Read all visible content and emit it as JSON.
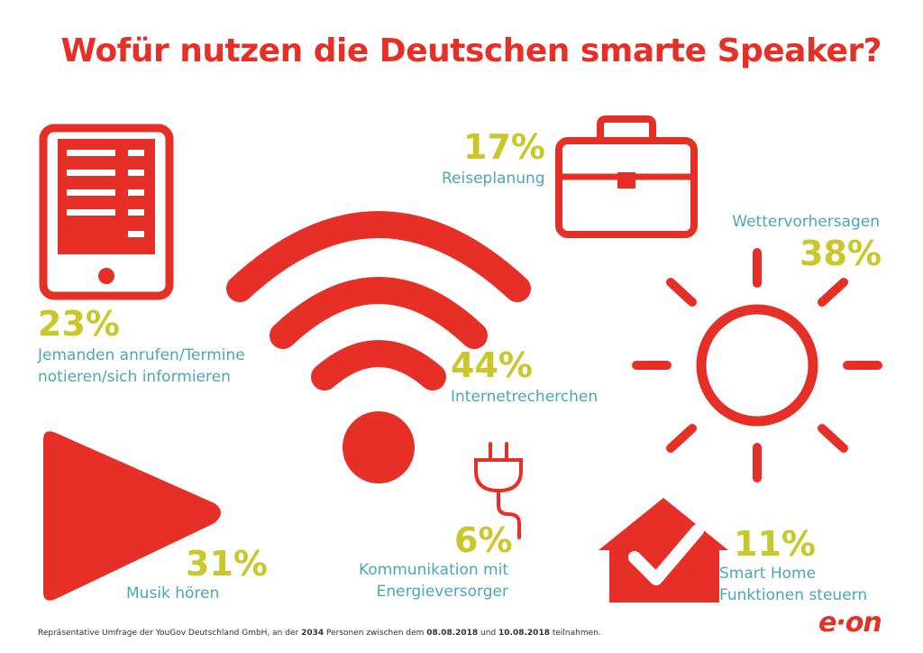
{
  "title": "Wofür nutzen die Deutschen smarte Speaker?",
  "colors": {
    "accent": "#e63027",
    "percent": "#c9c72c",
    "label": "#4aa8b5"
  },
  "chart_data": {
    "type": "infographic",
    "unit": "%",
    "items": [
      {
        "key": "tablet",
        "icon": "tablet-icon",
        "value": 23,
        "value_label": "23%",
        "label_lines": [
          "Jemanden anrufen/Termine",
          "notieren/sich informieren"
        ]
      },
      {
        "key": "suitcase",
        "icon": "suitcase-icon",
        "value": 17,
        "value_label": "17%",
        "label_lines": [
          "Reiseplanung"
        ]
      },
      {
        "key": "wifi",
        "icon": "wifi-icon",
        "value": 44,
        "value_label": "44%",
        "label_lines": [
          "Internetrecherchen"
        ]
      },
      {
        "key": "sun",
        "icon": "sun-icon",
        "value": 38,
        "value_label": "38%",
        "label_lines": [
          "Wettervorhersagen"
        ]
      },
      {
        "key": "play",
        "icon": "play-icon",
        "value": 31,
        "value_label": "31%",
        "label_lines": [
          "Musik hören"
        ]
      },
      {
        "key": "plug",
        "icon": "plug-icon",
        "value": 6,
        "value_label": "6%",
        "label_lines": [
          "Kommunikation mit",
          "Energieversorger"
        ]
      },
      {
        "key": "house",
        "icon": "house-check-icon",
        "value": 11,
        "value_label": "11%",
        "label_lines": [
          "Smart Home",
          "Funktionen steuern"
        ]
      }
    ]
  },
  "footnote": {
    "prefix": "Repräsentative Umfrage der YouGov Deutschland GmbH, an der ",
    "count": "2034",
    "middle": " Personen zwischen dem ",
    "date_from": "08.08.2018",
    "conj": " und ",
    "date_to": "10.08.2018",
    "suffix": " teilnahmen."
  },
  "logo": "e·on"
}
